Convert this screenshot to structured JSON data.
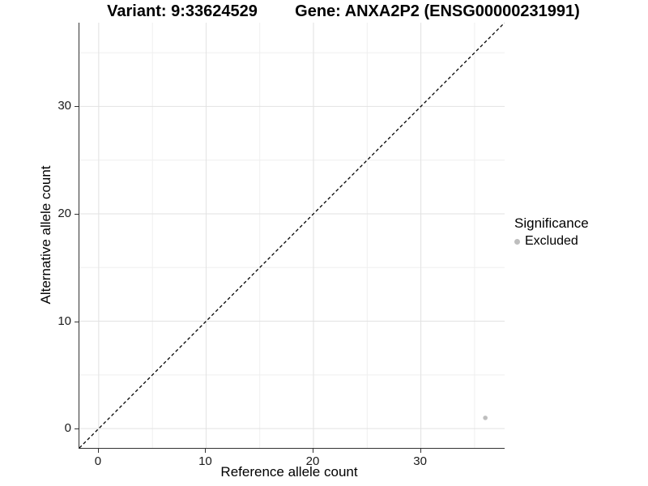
{
  "chart_data": {
    "type": "scatter",
    "title_left": "Variant: 9:33624529",
    "title_right": "Gene: ANXA2P2 (ENSG00000231991)",
    "xlabel": "Reference allele count",
    "ylabel": "Alternative allele count",
    "xlim": [
      -1.8,
      37.8
    ],
    "ylim": [
      -1.8,
      37.8
    ],
    "x_major_ticks": [
      0,
      10,
      20,
      30
    ],
    "y_major_ticks": [
      0,
      10,
      20,
      30
    ],
    "x_minor_ticks": [
      5,
      15,
      25,
      35
    ],
    "y_minor_ticks": [
      5,
      15,
      25,
      35
    ],
    "grid": true,
    "background": "#ffffff",
    "reference_line": {
      "type": "identity",
      "slope": 1,
      "intercept": 0,
      "style": "dashed",
      "color": "#000000"
    },
    "series": [
      {
        "name": "Excluded",
        "color": "#bebebe",
        "points": [
          {
            "x": 36,
            "y": 1
          }
        ]
      }
    ],
    "legend": {
      "title": "Significance",
      "position": "right",
      "entries": [
        {
          "label": "Excluded",
          "color": "#bebebe"
        }
      ]
    },
    "style": {
      "grid_major_color": "#e2e2e2",
      "grid_minor_color": "#efefef",
      "axis_line_color": "#333333",
      "point_radius": 2.8,
      "dash_pattern": "4,3"
    }
  }
}
